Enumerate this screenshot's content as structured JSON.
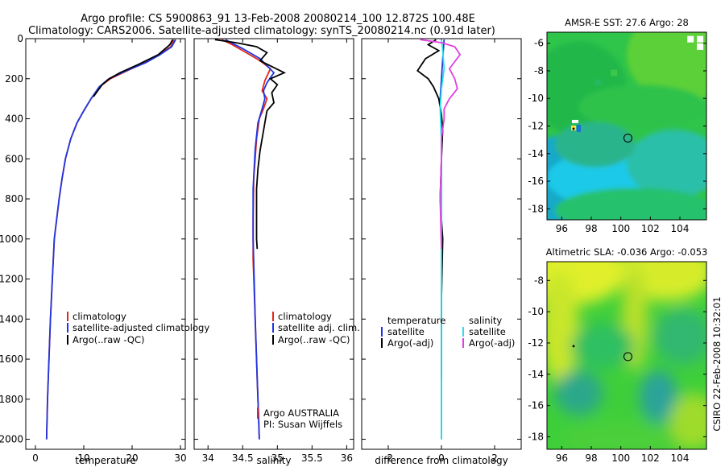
{
  "header": {
    "line1": "Argo profile: CS 5900863_91 13-Feb-2008 20080214_100 12.872S 100.48E",
    "line2": "Climatology: CARS2006. Satellite-adjusted climatology: synTS_20080214.nc (0.91d later)"
  },
  "side_label": "CSIRO 22-Feb-2008 10:32:01",
  "colors": {
    "climatology": "#e3261a",
    "satellite": "#1f36e0",
    "argo": "#000000",
    "sat_diff": "#29e0f0",
    "argo_sal_diff": "#e040e0"
  },
  "chart_data": [
    {
      "id": "temperature",
      "type": "line",
      "xlabel": "temperature",
      "ylabel": "",
      "xlim": [
        -2,
        31
      ],
      "ylim": [
        2050,
        0
      ],
      "xticks": [
        0,
        10,
        20,
        30
      ],
      "yticks": [
        0,
        200,
        400,
        600,
        800,
        1000,
        1200,
        1400,
        1600,
        1800,
        2000
      ],
      "legend": {
        "position": "lower-center",
        "entries": [
          "climatology",
          "satellite-adjusted climatology",
          "Argo(..raw -QC)"
        ]
      },
      "series": [
        {
          "name": "climatology",
          "color": "#e3261a",
          "x": [
            28.7,
            28.0,
            25.5,
            22.5,
            19.0,
            15.5,
            13.3,
            11.5,
            10.0,
            8.6,
            7.3,
            6.2,
            5.5,
            4.9,
            4.4,
            3.9,
            3.5,
            3.1,
            2.8,
            2.5,
            2.3
          ],
          "y": [
            5,
            40,
            80,
            120,
            160,
            200,
            240,
            300,
            360,
            420,
            500,
            600,
            700,
            800,
            900,
            1000,
            1200,
            1400,
            1600,
            1800,
            2000
          ]
        },
        {
          "name": "satellite-adjusted climatology",
          "color": "#1f36e0",
          "x": [
            29.0,
            28.2,
            25.8,
            22.8,
            18.8,
            15.2,
            13.2,
            11.5,
            10.0,
            8.6,
            7.3,
            6.2,
            5.5,
            4.9,
            4.4,
            3.9,
            3.5,
            3.1,
            2.8,
            2.5,
            2.3
          ],
          "y": [
            5,
            40,
            80,
            120,
            160,
            200,
            240,
            300,
            360,
            420,
            500,
            600,
            700,
            800,
            900,
            1000,
            1200,
            1400,
            1600,
            1800,
            2000
          ]
        },
        {
          "name": "Argo(..raw -QC)",
          "color": "#000000",
          "x": [
            28.4,
            27.8,
            25.4,
            21.2,
            17.5,
            15.3,
            13.8,
            12.0
          ],
          "y": [
            5,
            30,
            80,
            130,
            170,
            200,
            230,
            290
          ]
        }
      ]
    },
    {
      "id": "salinity",
      "type": "line",
      "xlabel": "salinity",
      "ylabel": "",
      "xlim": [
        33.8,
        36.1
      ],
      "ylim": [
        2050,
        0
      ],
      "xticks": [
        34,
        34.5,
        35,
        35.5,
        36
      ],
      "xticklabels": [
        "34",
        "34.5",
        "35",
        "35.5",
        "36"
      ],
      "yticks": [
        0,
        200,
        400,
        600,
        800,
        1000,
        1200,
        1400,
        1600,
        1800,
        2000
      ],
      "legend": {
        "position": "lower-center",
        "entries": [
          "climatology",
          "satellite adj. clim.",
          "Argo(..raw -QC)"
        ]
      },
      "annotation": {
        "line1": "Argo AUSTRALIA",
        "line2": "PI: Susan Wijffels"
      },
      "series": [
        {
          "name": "climatology",
          "color": "#e3261a",
          "x": [
            34.2,
            34.35,
            34.55,
            34.75,
            34.9,
            34.82,
            34.78,
            34.85,
            34.8,
            34.74,
            34.7,
            34.66,
            34.65,
            34.65,
            34.68,
            34.71,
            34.73,
            34.74
          ],
          "y": [
            5,
            30,
            70,
            110,
            150,
            210,
            260,
            300,
            350,
            400,
            500,
            700,
            900,
            1100,
            1400,
            1700,
            1900,
            2000
          ]
        },
        {
          "name": "satellite adj. clim.",
          "color": "#1f36e0",
          "x": [
            34.25,
            34.5,
            34.75,
            34.95,
            34.85,
            34.8,
            34.82,
            34.78,
            34.72,
            34.68,
            34.65,
            34.65,
            34.68,
            34.71,
            34.73,
            34.74
          ],
          "y": [
            5,
            50,
            100,
            170,
            220,
            260,
            300,
            350,
            420,
            550,
            750,
            1000,
            1400,
            1700,
            1900,
            2000
          ]
        },
        {
          "name": "Argo(..raw -QC)",
          "color": "#000000",
          "x": [
            34.1,
            34.4,
            34.7,
            34.85,
            34.75,
            35.1,
            34.9,
            35.0,
            34.92,
            34.95,
            34.85,
            34.82,
            34.78,
            34.75,
            34.72,
            34.7,
            34.7,
            34.7,
            34.71
          ],
          "y": [
            5,
            20,
            40,
            70,
            110,
            170,
            200,
            230,
            270,
            320,
            360,
            420,
            500,
            560,
            650,
            750,
            900,
            1000,
            1050
          ]
        }
      ]
    },
    {
      "id": "difference",
      "type": "line",
      "xlabel": "difference from climatology",
      "ylabel": "",
      "xlim": [
        -3.0,
        3.0
      ],
      "ylim": [
        2050,
        0
      ],
      "xticks": [
        -2,
        0,
        2
      ],
      "yticks": [
        0,
        200,
        400,
        600,
        800,
        1000,
        1200,
        1400,
        1600,
        1800,
        2000
      ],
      "legend": {
        "position": "lower-center",
        "header_left": "temperature",
        "header_right": "salinity",
        "entries_left": [
          "satellite",
          "Argo(-adj)"
        ],
        "entries_right": [
          "satellite",
          "Argo(-adj)"
        ]
      },
      "series": [
        {
          "name": "temperature satellite",
          "color": "#1f36e0",
          "x": [
            0.1,
            0.05,
            0.0,
            -0.05,
            0.0,
            0.0,
            0.0,
            0.0
          ],
          "y": [
            5,
            100,
            200,
            300,
            500,
            1000,
            1500,
            2000
          ]
        },
        {
          "name": "temperature Argo(-adj)",
          "color": "#000000",
          "x": [
            -0.2,
            -0.5,
            -0.1,
            -0.6,
            -0.9,
            -0.5,
            -0.3,
            -0.1,
            0.0,
            0.05,
            0.0,
            -0.05,
            0.05,
            0.0,
            0.0
          ],
          "y": [
            5,
            30,
            60,
            100,
            160,
            200,
            240,
            300,
            380,
            450,
            600,
            800,
            1000,
            1300,
            1700
          ]
        },
        {
          "name": "salinity satellite",
          "color": "#29e0f0",
          "x": [
            0.0,
            0.05,
            0.1,
            0.0,
            -0.05,
            0.0,
            0.0,
            0.0,
            0.0
          ],
          "y": [
            5,
            60,
            150,
            250,
            350,
            500,
            1000,
            1500,
            2000
          ]
        },
        {
          "name": "salinity Argo(-adj)",
          "color": "#e040e0",
          "x": [
            -0.8,
            0.0,
            0.5,
            0.7,
            0.3,
            0.5,
            0.6,
            0.3,
            0.1,
            0.1,
            0.0,
            0.0,
            -0.05,
            0.0
          ],
          "y": [
            5,
            20,
            40,
            80,
            150,
            200,
            250,
            300,
            350,
            400,
            500,
            600,
            800,
            1050
          ]
        }
      ]
    },
    {
      "id": "sst_map",
      "type": "heatmap",
      "title": "AMSR-E SST: 27.6 Argo: 28",
      "xlim": [
        95,
        105.8
      ],
      "ylim": [
        -18.8,
        -5.2
      ],
      "xticks": [
        96,
        98,
        100,
        102,
        104
      ],
      "yticks": [
        -6,
        -8,
        -10,
        -12,
        -14,
        -16,
        -18
      ],
      "profile_marker": {
        "lon": 100.48,
        "lat": -12.872
      },
      "argo_marker": {
        "lon": 96.8,
        "lat": -12.2
      }
    },
    {
      "id": "sla_map",
      "type": "heatmap",
      "title": "Altimetric SLA: -0.036 Argo: -0.053",
      "xlim": [
        95,
        105.8
      ],
      "ylim": [
        -18.8,
        -6.8
      ],
      "xticks": [
        96,
        98,
        100,
        102,
        104
      ],
      "yticks": [
        -8,
        -10,
        -12,
        -14,
        -16,
        -18
      ],
      "profile_marker": {
        "lon": 100.48,
        "lat": -12.872
      },
      "argo_marker": {
        "lon": 96.8,
        "lat": -12.2
      }
    }
  ]
}
